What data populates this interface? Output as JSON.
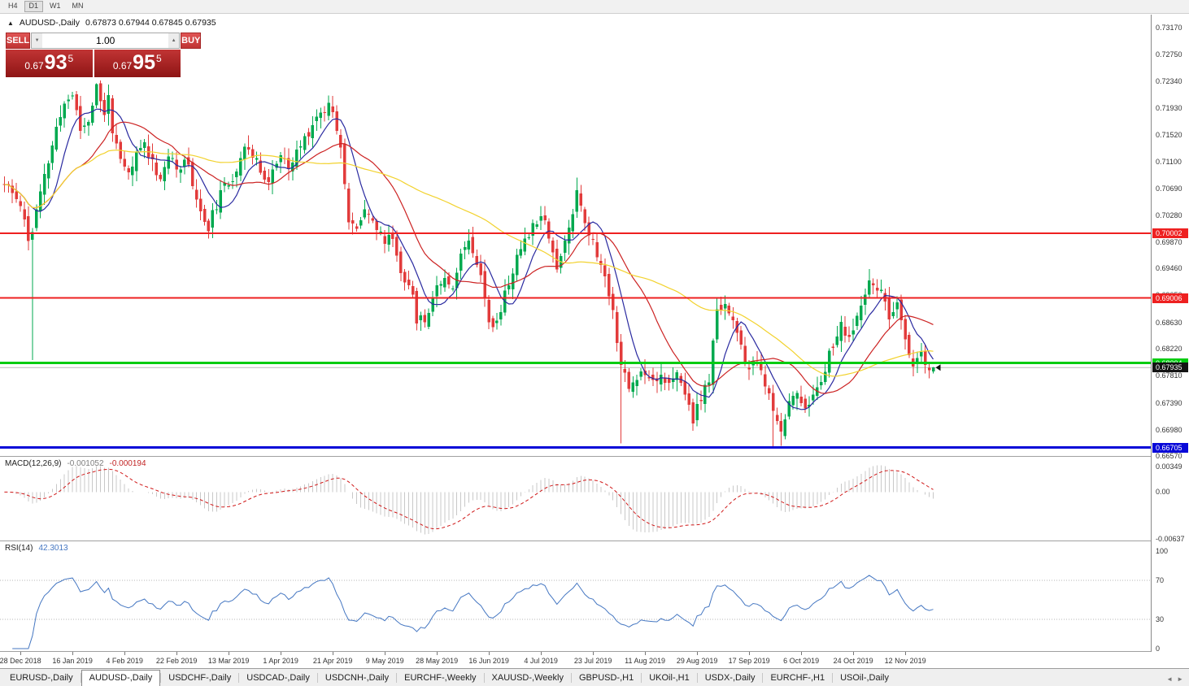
{
  "toolbar": {
    "timeframes": [
      "H4",
      "D1",
      "W1",
      "MN"
    ],
    "active": "D1"
  },
  "chart": {
    "title": "AUDUSD-,Daily",
    "ohlc_text": "0.67873 0.67944 0.67845 0.67935"
  },
  "icons": {
    "chart": "▲",
    "vol_down": "▼",
    "vol_up": "▲",
    "tabs_left": "◄",
    "tabs_right": "►"
  },
  "one_click": {
    "sell_label": "SELL",
    "buy_label": "BUY",
    "volume": "1.00",
    "sell_price": {
      "prefix": "0.67",
      "main": "93",
      "sup": "5"
    },
    "buy_price": {
      "prefix": "0.67",
      "main": "95",
      "sup": "5"
    }
  },
  "y_axis": {
    "ticks": [
      "0.73170",
      "0.72750",
      "0.72340",
      "0.71930",
      "0.71520",
      "0.71100",
      "0.70690",
      "0.70280",
      "0.69870",
      "0.69460",
      "0.69050",
      "0.68630",
      "0.68220",
      "0.67810",
      "0.67390",
      "0.66980",
      "0.66570"
    ]
  },
  "x_axis": {
    "labels": [
      "28 Dec 2018",
      "16 Jan 2019",
      "4 Feb 2019",
      "22 Feb 2019",
      "13 Mar 2019",
      "1 Apr 2019",
      "21 Apr 2019",
      "9 May 2019",
      "28 May 2019",
      "16 Jun 2019",
      "4 Jul 2019",
      "23 Jul 2019",
      "11 Aug 2019",
      "29 Aug 2019",
      "17 Sep 2019",
      "6 Oct 2019",
      "24 Oct 2019",
      "12 Nov 2019"
    ]
  },
  "levels": [
    {
      "label": "0.70002",
      "value": 0.70002,
      "color": "#ee2020",
      "width": 2
    },
    {
      "label": "0.69006",
      "value": 0.69006,
      "color": "#ee2020",
      "width": 2
    },
    {
      "label": "0.68004",
      "value": 0.68004,
      "color": "#00cc10",
      "width": 3
    },
    {
      "label": "0.66705",
      "value": 0.66705,
      "color": "#0808d8",
      "width": 3
    }
  ],
  "current_price": {
    "label": "0.67935",
    "value": 0.67935
  },
  "macd": {
    "name": "MACD(12,26,9)",
    "value_main": "-0.001052",
    "value_signal": "-0.000194",
    "ticks": [
      {
        "label": "0.00349",
        "value": 0.00349
      },
      {
        "label": "0.00",
        "value": 0
      },
      {
        "label": "-0.00637",
        "value": -0.00637
      }
    ]
  },
  "rsi": {
    "name": "RSI(14)",
    "value": "42.3013",
    "ticks": [
      {
        "label": "100",
        "value": 100
      },
      {
        "label": "70",
        "value": 70
      },
      {
        "label": "30",
        "value": 30
      },
      {
        "label": "0",
        "value": 0
      }
    ],
    "levels_dotted": [
      70,
      30
    ]
  },
  "tabs": {
    "items": [
      "EURUSD-,Daily",
      "AUDUSD-,Daily",
      "USDCHF-,Daily",
      "USDCAD-,Daily",
      "USDCNH-,Daily",
      "EURCHF-,Weekly",
      "XAUUSD-,Weekly",
      "GBPUSD-,H1",
      "UKOil-,H1",
      "USDX-,Daily",
      "EURCHF-,H1",
      "USOil-,Daily"
    ],
    "active_index": 1
  },
  "colors": {
    "up": "#00a94f",
    "down": "#e23b3b",
    "ma_fast": "#2a2aa0",
    "ma_mid": "#cc2222",
    "ma_slow": "#f2d22e",
    "macd_hist": "#c8c8c8",
    "macd_signal": "#d01818",
    "rsi_line": "#4577c2",
    "rsi_level": "#b4b4b4",
    "current_line": "#b8b8b8",
    "current_tag": "#141414"
  },
  "chart_data": {
    "type": "candlestick",
    "symbol": "AUDUSD-",
    "period": "Daily",
    "last_bar": {
      "open": 0.67873,
      "high": 0.67944,
      "low": 0.67845,
      "close": 0.67935
    },
    "bars": 233,
    "seed": 11,
    "x_step": 4.923,
    "x_offset": 5.4,
    "price_top": 0.73365,
    "price_bottom": 0.66575,
    "noise": 0.0009,
    "gap": 0.0007,
    "wick": 0.0015,
    "clamp_low": 0.6672,
    "clamp_high": 0.7235,
    "label_first_bar": 4,
    "label_bar_step": 13,
    "ma_periods": [
      8,
      20,
      55
    ],
    "macd_range": {
      "top": 0.0048,
      "bottom": -0.0066
    },
    "anchors": [
      [
        0,
        0.7075
      ],
      [
        2,
        0.706
      ],
      [
        4,
        0.7048
      ],
      [
        5,
        0.702
      ],
      [
        6,
        0.699
      ],
      [
        7,
        0.7005
      ],
      [
        9,
        0.706
      ],
      [
        11,
        0.711
      ],
      [
        13,
        0.716
      ],
      [
        15,
        0.72
      ],
      [
        17,
        0.7215
      ],
      [
        19,
        0.716
      ],
      [
        21,
        0.7175
      ],
      [
        23,
        0.7225
      ],
      [
        25,
        0.718
      ],
      [
        26,
        0.722
      ],
      [
        27,
        0.715
      ],
      [
        29,
        0.711
      ],
      [
        31,
        0.709
      ],
      [
        33,
        0.712
      ],
      [
        35,
        0.714
      ],
      [
        37,
        0.711
      ],
      [
        39,
        0.7085
      ],
      [
        41,
        0.712
      ],
      [
        43,
        0.7095
      ],
      [
        45,
        0.712
      ],
      [
        47,
        0.708
      ],
      [
        49,
        0.703
      ],
      [
        51,
        0.701
      ],
      [
        53,
        0.7045
      ],
      [
        55,
        0.707
      ],
      [
        56,
        0.7075
      ],
      [
        58,
        0.71
      ],
      [
        60,
        0.714
      ],
      [
        62,
        0.7115
      ],
      [
        64,
        0.71
      ],
      [
        66,
        0.708
      ],
      [
        68,
        0.711
      ],
      [
        69,
        0.712
      ],
      [
        71,
        0.7095
      ],
      [
        73,
        0.7125
      ],
      [
        75,
        0.7145
      ],
      [
        77,
        0.717
      ],
      [
        79,
        0.7185
      ],
      [
        81,
        0.72
      ],
      [
        82,
        0.719
      ],
      [
        84,
        0.714
      ],
      [
        86,
        0.7015
      ],
      [
        88,
        0.7005
      ],
      [
        90,
        0.7045
      ],
      [
        92,
        0.702
      ],
      [
        94,
        0.6995
      ],
      [
        95,
        0.699
      ],
      [
        97,
        0.6995
      ],
      [
        99,
        0.694
      ],
      [
        101,
        0.6925
      ],
      [
        103,
        0.687
      ],
      [
        105,
        0.6865
      ],
      [
        107,
        0.6905
      ],
      [
        108,
        0.692
      ],
      [
        110,
        0.6935
      ],
      [
        112,
        0.692
      ],
      [
        114,
        0.6965
      ],
      [
        116,
        0.6995
      ],
      [
        118,
        0.696
      ],
      [
        120,
        0.6905
      ],
      [
        121,
        0.687
      ],
      [
        122,
        0.685
      ],
      [
        124,
        0.6885
      ],
      [
        126,
        0.6925
      ],
      [
        128,
        0.696
      ],
      [
        130,
        0.6995
      ],
      [
        132,
        0.701
      ],
      [
        134,
        0.7035
      ],
      [
        136,
        0.7
      ],
      [
        138,
        0.6945
      ],
      [
        140,
        0.6985
      ],
      [
        142,
        0.7035
      ],
      [
        143,
        0.707
      ],
      [
        145,
        0.702
      ],
      [
        147,
        0.6985
      ],
      [
        149,
        0.695
      ],
      [
        151,
        0.691
      ],
      [
        152,
        0.688
      ],
      [
        154,
        0.68
      ],
      [
        156,
        0.676
      ],
      [
        158,
        0.678
      ],
      [
        160,
        0.679
      ],
      [
        162,
        0.6775
      ],
      [
        164,
        0.6785
      ],
      [
        166,
        0.6765
      ],
      [
        168,
        0.678
      ],
      [
        170,
        0.6755
      ],
      [
        172,
        0.6715
      ],
      [
        173,
        0.673
      ],
      [
        174,
        0.6745
      ],
      [
        176,
        0.6775
      ],
      [
        178,
        0.688
      ],
      [
        180,
        0.6895
      ],
      [
        182,
        0.6865
      ],
      [
        184,
        0.682
      ],
      [
        186,
        0.679
      ],
      [
        188,
        0.68
      ],
      [
        190,
        0.677
      ],
      [
        192,
        0.672
      ],
      [
        194,
        0.67
      ],
      [
        196,
        0.674
      ],
      [
        198,
        0.6755
      ],
      [
        199,
        0.6745
      ],
      [
        201,
        0.673
      ],
      [
        203,
        0.6765
      ],
      [
        205,
        0.6795
      ],
      [
        207,
        0.683
      ],
      [
        209,
        0.6855
      ],
      [
        211,
        0.684
      ],
      [
        212,
        0.685
      ],
      [
        214,
        0.6885
      ],
      [
        216,
        0.692
      ],
      [
        217,
        0.6928
      ],
      [
        219,
        0.6905
      ],
      [
        221,
        0.687
      ],
      [
        223,
        0.6885
      ],
      [
        225,
        0.684
      ],
      [
        227,
        0.6795
      ],
      [
        229,
        0.681
      ],
      [
        231,
        0.6785
      ],
      [
        232,
        0.6794
      ]
    ],
    "spikes": [
      {
        "i": 7,
        "low": 0.6805
      },
      {
        "i": 23,
        "high": 0.7231
      },
      {
        "i": 26,
        "high": 0.7229
      },
      {
        "i": 81,
        "high": 0.7212
      },
      {
        "i": 143,
        "high": 0.7086
      },
      {
        "i": 154,
        "low": 0.6677
      },
      {
        "i": 192,
        "low": 0.667
      },
      {
        "i": 194,
        "low": 0.6673
      },
      {
        "i": 217,
        "high": 0.6931
      }
    ]
  }
}
